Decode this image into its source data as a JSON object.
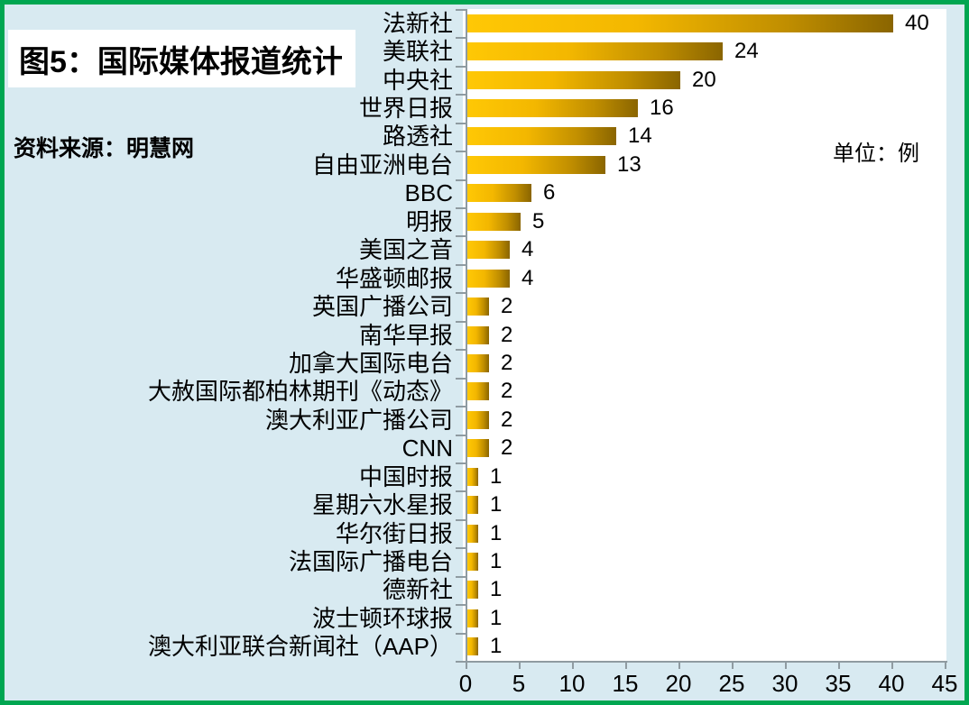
{
  "title": "图5：国际媒体报道统计",
  "source": "资料来源：明慧网",
  "unit_label": "单位：例",
  "colors": {
    "frame_border": "#00a651",
    "background": "#d8eaf1",
    "plot_background": "#ffffff",
    "bar_gradient_start": "#ffc805",
    "bar_gradient_end": "#8a6500",
    "axis": "#8f9ba1",
    "text": "#000000"
  },
  "chart_data": {
    "type": "bar",
    "orientation": "horizontal",
    "title": "图5：国际媒体报道统计",
    "xlabel": "",
    "ylabel": "",
    "unit": "单位：例",
    "xlim": [
      0,
      45
    ],
    "xticks": [
      0,
      5,
      10,
      15,
      20,
      25,
      30,
      35,
      40,
      45
    ],
    "grid": false,
    "data_labels": true,
    "categories": [
      "法新社",
      "美联社",
      "中央社",
      "世界日报",
      "路透社",
      "自由亚洲电台",
      "BBC",
      "明报",
      "美国之音",
      "华盛顿邮报",
      "英国广播公司",
      "南华早报",
      "加拿大国际电台",
      "大赦国际都柏林期刊《动态》",
      "澳大利亚广播公司",
      "CNN",
      "中国时报",
      "星期六水星报",
      "华尔街日报",
      "法国际广播电台",
      "德新社",
      "波士顿环球报",
      "澳大利亚联合新闻社（AAP）"
    ],
    "values": [
      40,
      24,
      20,
      16,
      14,
      13,
      6,
      5,
      4,
      4,
      2,
      2,
      2,
      2,
      2,
      2,
      1,
      1,
      1,
      1,
      1,
      1,
      1
    ]
  }
}
